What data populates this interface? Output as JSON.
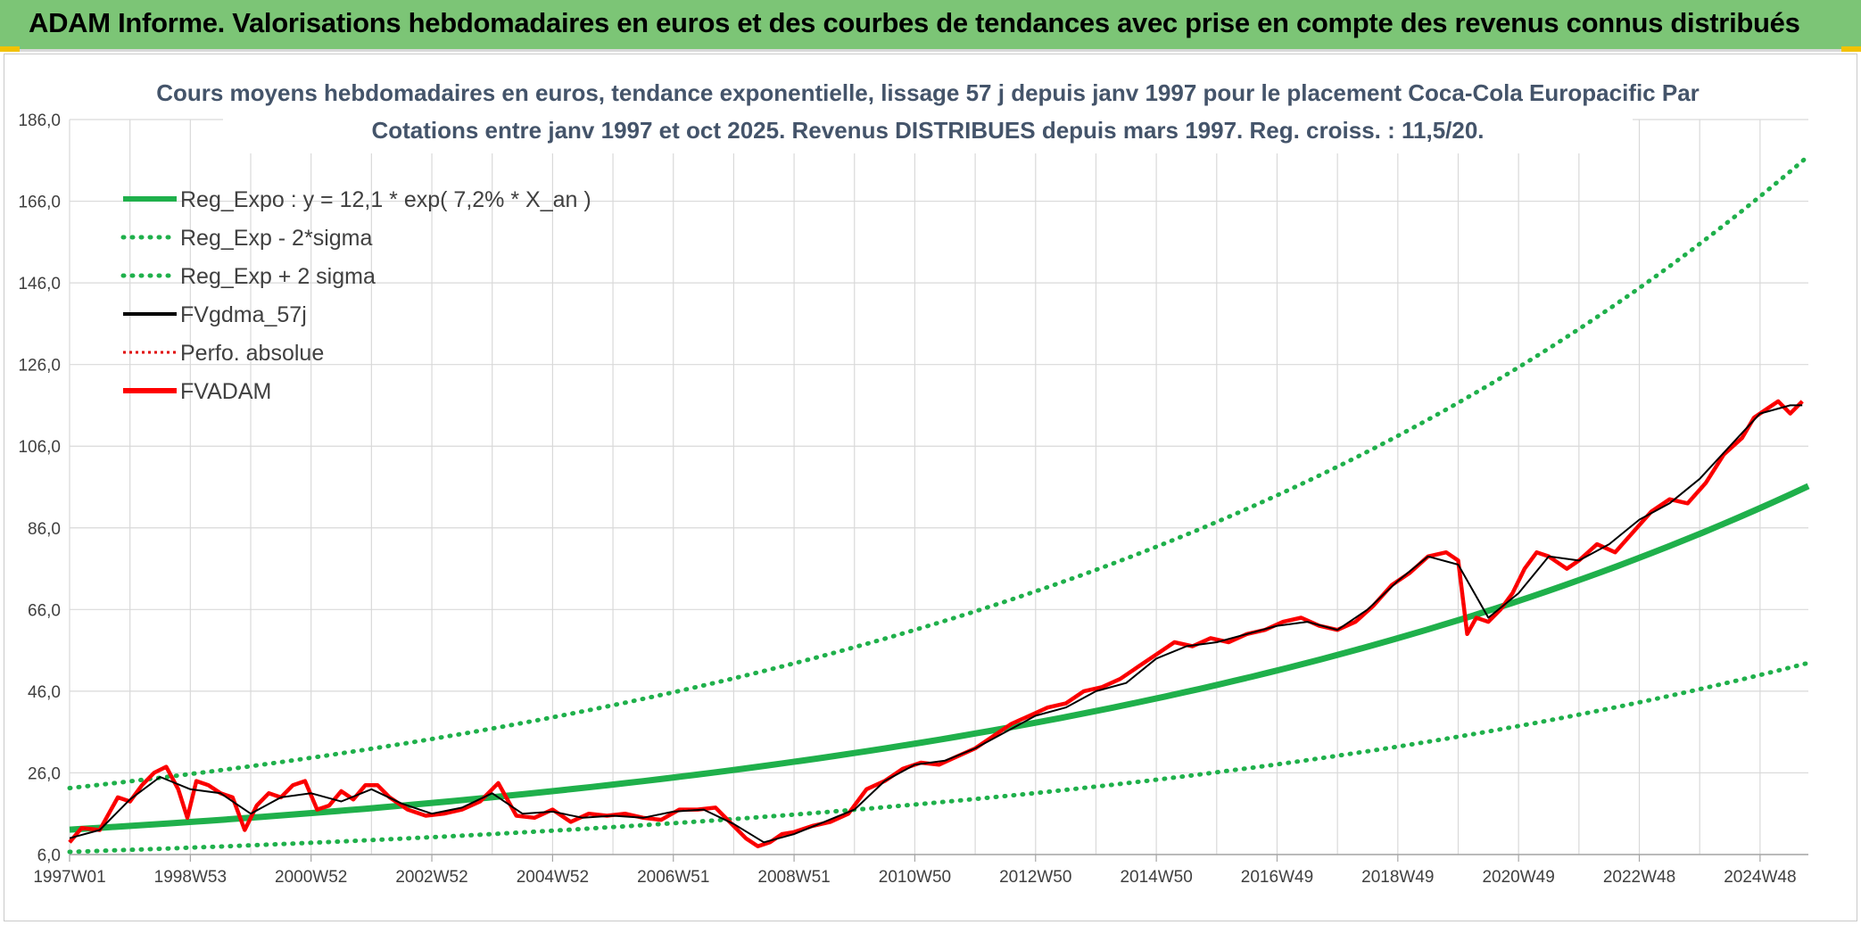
{
  "banner": {
    "title": "ADAM Informe. Valorisations hebdomadaires en euros et des courbes de tendances avec prise en compte des revenus connus distribués"
  },
  "colors": {
    "banner_bg": "#7cc576",
    "regression": "#1fb04b",
    "band": "#1fb04b",
    "smoothed": "#000000",
    "perfo": "#e00000",
    "fvadam": "#ff0000",
    "grid": "#d9d9d9",
    "title": "#44546a"
  },
  "chart_data": {
    "type": "line",
    "title_lines": [
      "Cours moyens hebdomadaires en euros, tendance exponentielle, lissage 57 j depuis janv 1997 pour le placement Coca-Cola Europacific Par",
      "Cotations entre janv 1997 et oct 2025. Revenus DISTRIBUES depuis mars 1997. Reg. croiss. : 11,5/20."
    ],
    "ylim": [
      6,
      186
    ],
    "y_ticks": [
      "186,0",
      "166,0",
      "146,0",
      "126,0",
      "106,0",
      "86,0",
      "66,0",
      "46,0",
      "26,0",
      "6,0"
    ],
    "y_tick_values": [
      186,
      166,
      146,
      126,
      106,
      86,
      66,
      46,
      26,
      6
    ],
    "x_range_years": [
      1997.0,
      2025.8
    ],
    "x_ticks": [
      "1997W01",
      "1998W53",
      "2000W52",
      "2002W52",
      "2004W52",
      "2006W51",
      "2008W51",
      "2010W50",
      "2012W50",
      "2014W50",
      "2016W49",
      "2018W49",
      "2020W49",
      "2022W48",
      "2024W48"
    ],
    "x_tick_years": [
      1997.0,
      1999.0,
      2001.0,
      2003.0,
      2005.0,
      2007.0,
      2009.0,
      2011.0,
      2013.0,
      2015.0,
      2017.0,
      2019.0,
      2021.0,
      2023.0,
      2025.0
    ],
    "grid": true,
    "legend_position": "top-left",
    "legend": [
      {
        "label": "Reg_Expo : y = 12,1 * exp( 7,2% *  X_an )",
        "style": "solid-thick",
        "color": "#1fb04b"
      },
      {
        "label": "Reg_Exp - 2*sigma",
        "style": "dotted",
        "color": "#1fb04b"
      },
      {
        "label": "Reg_Exp + 2 sigma",
        "style": "dotted",
        "color": "#1fb04b"
      },
      {
        "label": "FVgdma_57j",
        "style": "solid",
        "color": "#000000"
      },
      {
        "label": "Perfo. absolue",
        "style": "dotted-thin",
        "color": "#e00000"
      },
      {
        "label": "FVADAM",
        "style": "solid-thick",
        "color": "#ff0000"
      }
    ],
    "regression": {
      "a": 12.1,
      "rate": 0.072,
      "minus_2sigma_factor": 0.55,
      "plus_2sigma_factor": 1.84
    },
    "series": [
      {
        "name": "FVADAM",
        "x": [
          1997.0,
          1997.2,
          1997.5,
          1997.8,
          1998.0,
          1998.2,
          1998.4,
          1998.6,
          1998.8,
          1998.95,
          1999.1,
          1999.3,
          1999.5,
          1999.7,
          1999.9,
          2000.1,
          2000.3,
          2000.5,
          2000.7,
          2000.9,
          2001.1,
          2001.3,
          2001.5,
          2001.7,
          2001.9,
          2002.1,
          2002.3,
          2002.6,
          2002.9,
          2003.2,
          2003.5,
          2003.8,
          2004.1,
          2004.4,
          2004.7,
          2005.0,
          2005.3,
          2005.6,
          2005.9,
          2006.2,
          2006.5,
          2006.8,
          2007.1,
          2007.4,
          2007.7,
          2008.0,
          2008.2,
          2008.4,
          2008.6,
          2008.8,
          2009.0,
          2009.3,
          2009.6,
          2009.9,
          2010.2,
          2010.5,
          2010.8,
          2011.1,
          2011.4,
          2011.7,
          2012.0,
          2012.3,
          2012.6,
          2012.9,
          2013.2,
          2013.5,
          2013.8,
          2014.1,
          2014.4,
          2014.7,
          2015.0,
          2015.3,
          2015.6,
          2015.9,
          2016.2,
          2016.5,
          2016.8,
          2017.1,
          2017.4,
          2017.7,
          2018.0,
          2018.3,
          2018.6,
          2018.9,
          2019.2,
          2019.5,
          2019.8,
          2020.0,
          2020.15,
          2020.3,
          2020.5,
          2020.7,
          2020.9,
          2021.1,
          2021.3,
          2021.5,
          2021.8,
          2022.0,
          2022.3,
          2022.6,
          2022.9,
          2023.2,
          2023.5,
          2023.8,
          2024.1,
          2024.4,
          2024.7,
          2024.9,
          2025.1,
          2025.3,
          2025.5,
          2025.7
        ],
        "y": [
          9.0,
          12.5,
          12.0,
          20.0,
          19.0,
          23.0,
          26.0,
          27.5,
          22.0,
          15.0,
          24.0,
          23.0,
          21.0,
          20.0,
          12.0,
          18.0,
          21.0,
          20.0,
          23.0,
          24.0,
          17.0,
          18.0,
          21.5,
          19.5,
          23.0,
          23.0,
          20.0,
          17.0,
          15.5,
          16.0,
          17.0,
          19.0,
          23.5,
          15.5,
          15.0,
          17.0,
          14.0,
          16.0,
          15.5,
          16.0,
          15.0,
          14.5,
          17.0,
          17.0,
          17.5,
          13.0,
          10.0,
          8.0,
          9.0,
          11.0,
          11.5,
          13.0,
          14.0,
          16.0,
          22.0,
          24.0,
          27.0,
          28.5,
          28.0,
          30.0,
          32.0,
          35.0,
          38.0,
          40.0,
          42.0,
          43.0,
          46.0,
          47.0,
          49.0,
          52.0,
          55.0,
          58.0,
          57.0,
          59.0,
          58.0,
          60.0,
          61.0,
          63.0,
          64.0,
          62.0,
          61.0,
          63.0,
          67.0,
          72.0,
          75.0,
          79.0,
          80.0,
          78.0,
          60.0,
          64.0,
          63.0,
          66.0,
          70.0,
          76.0,
          80.0,
          79.0,
          76.0,
          78.0,
          82.0,
          80.0,
          85.0,
          90.0,
          93.0,
          92.0,
          97.0,
          104.0,
          108.0,
          113.0,
          115.0,
          117.0,
          114.0,
          117.0
        ]
      },
      {
        "name": "FVgdma_57j",
        "x": [
          1997.0,
          1997.5,
          1998.0,
          1998.5,
          1999.0,
          1999.5,
          2000.0,
          2000.5,
          2001.0,
          2001.5,
          2002.0,
          2002.5,
          2003.0,
          2003.5,
          2004.0,
          2004.5,
          2005.0,
          2005.5,
          2006.0,
          2006.5,
          2007.0,
          2007.5,
          2008.0,
          2008.5,
          2009.0,
          2009.5,
          2010.0,
          2010.5,
          2011.0,
          2011.5,
          2012.0,
          2012.5,
          2013.0,
          2013.5,
          2014.0,
          2014.5,
          2015.0,
          2015.5,
          2016.0,
          2016.5,
          2017.0,
          2017.5,
          2018.0,
          2018.5,
          2019.0,
          2019.5,
          2020.0,
          2020.5,
          2021.0,
          2021.5,
          2022.0,
          2022.5,
          2023.0,
          2023.5,
          2024.0,
          2024.5,
          2025.0,
          2025.5,
          2025.7
        ],
        "y": [
          10.0,
          12.0,
          19.5,
          25.0,
          22.0,
          21.0,
          16.0,
          20.0,
          21.0,
          19.0,
          22.0,
          18.5,
          16.0,
          17.5,
          21.0,
          16.0,
          16.5,
          15.0,
          15.5,
          15.0,
          16.5,
          17.0,
          13.5,
          9.0,
          11.0,
          14.0,
          17.0,
          24.0,
          28.0,
          29.0,
          32.0,
          36.0,
          40.0,
          42.0,
          46.0,
          48.0,
          54.0,
          57.0,
          58.0,
          60.0,
          62.0,
          63.0,
          61.0,
          66.0,
          73.0,
          79.0,
          77.0,
          64.0,
          70.0,
          79.0,
          78.0,
          82.0,
          88.0,
          92.0,
          98.0,
          106.0,
          114.0,
          116.0,
          116.0
        ]
      }
    ]
  }
}
